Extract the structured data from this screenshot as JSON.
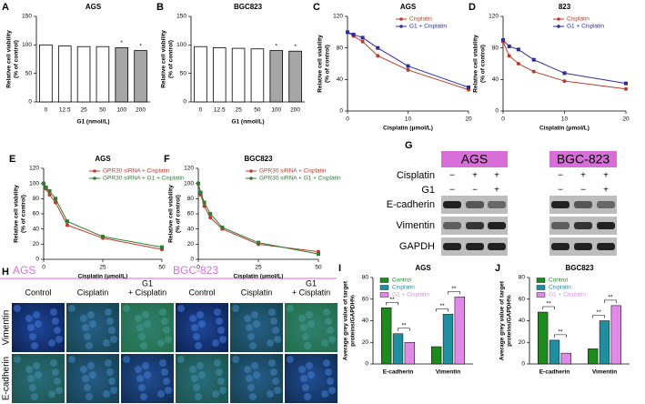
{
  "chart_data": [
    {
      "type": "bar",
      "panel": "A",
      "title": "AGS",
      "categories": [
        "0",
        "12.5",
        "25",
        "50",
        "100",
        "200"
      ],
      "values": [
        100,
        98,
        97,
        97,
        95,
        90
      ],
      "colors": [
        "#ffffff",
        "#ffffff",
        "#ffffff",
        "#ffffff",
        "#a6a6a6",
        "#a6a6a6"
      ],
      "ylim": [
        0,
        150
      ],
      "yticks": [
        0,
        50,
        100,
        150
      ],
      "ylabel": [
        "Relative cell viability",
        "(% of control)"
      ],
      "xlabel": "G1 (nmol/L)",
      "annotations": [
        {
          "text": "*",
          "category": "100"
        },
        {
          "text": "*",
          "category": "200"
        }
      ]
    },
    {
      "type": "bar",
      "panel": "B",
      "title": "BGC823",
      "categories": [
        "0",
        "12.5",
        "25",
        "50",
        "100",
        "200"
      ],
      "values": [
        97,
        95,
        94,
        93,
        90,
        89
      ],
      "colors": [
        "#ffffff",
        "#ffffff",
        "#ffffff",
        "#ffffff",
        "#a6a6a6",
        "#a6a6a6"
      ],
      "ylim": [
        0,
        150
      ],
      "yticks": [
        0,
        50,
        100,
        150
      ],
      "ylabel": [
        "Relative cell viability",
        "(% of control)"
      ],
      "xlabel": "G1 (nmol/L)",
      "annotations": [
        {
          "text": "*",
          "category": "100"
        },
        {
          "text": "*",
          "category": "200"
        }
      ]
    },
    {
      "type": "line",
      "panel": "C",
      "title": "AGS",
      "x": [
        0,
        1,
        2.5,
        5,
        10,
        20
      ],
      "xlim": [
        0,
        20
      ],
      "xticks": [
        0,
        10,
        20
      ],
      "ylim": [
        0,
        120
      ],
      "yticks": [
        0,
        40,
        80,
        120
      ],
      "ylabel": [
        "Relative cell viability",
        "(% of control)"
      ],
      "xlabel": "Cisplatin (μmol/L)",
      "legend": "upper right",
      "series": [
        {
          "name": "Cisplatin",
          "color": "#c0392b",
          "marker": "circle",
          "values": [
            100,
            95,
            88,
            70,
            52,
            27
          ]
        },
        {
          "name": "G1 + Cisplatin",
          "color": "#2c2c9c",
          "marker": "square",
          "values": [
            100,
            97,
            93,
            80,
            57,
            30
          ]
        }
      ]
    },
    {
      "type": "line",
      "panel": "D",
      "title": "823",
      "x": [
        0,
        1,
        2.5,
        5,
        10,
        20
      ],
      "xlim": [
        0,
        20
      ],
      "xticks": [
        0,
        10,
        20
      ],
      "ylim": [
        0,
        120
      ],
      "yticks": [
        0,
        40,
        80,
        120
      ],
      "ylabel": [
        "Relative cell viability",
        "(% of control)"
      ],
      "xlabel": "Cisplatin (μmol/L)",
      "legend": "upper right",
      "series": [
        {
          "name": "Cisplatin",
          "color": "#c0392b",
          "marker": "circle",
          "values": [
            88,
            70,
            60,
            50,
            38,
            28
          ]
        },
        {
          "name": "G1 + Cisplatin",
          "color": "#2c2c9c",
          "marker": "square",
          "values": [
            90,
            82,
            78,
            65,
            48,
            35
          ]
        }
      ]
    },
    {
      "type": "line",
      "panel": "E",
      "title": "AGS",
      "x": [
        0,
        1,
        2.5,
        5,
        10,
        25,
        50
      ],
      "xlim": [
        0,
        50
      ],
      "xticks": [
        0,
        25,
        50
      ],
      "ylim": [
        0,
        120
      ],
      "yticks": [
        0,
        20,
        40,
        60,
        80,
        100,
        120
      ],
      "ylabel": [
        "Relative cell viability",
        "(% of control)"
      ],
      "xlabel": "Cisplatin (μmol/L)",
      "legend": "upper right",
      "series": [
        {
          "name": "GPR30 siRNA + Cisplatin",
          "color": "#c0392b",
          "marker": "circle",
          "values": [
            100,
            93,
            85,
            75,
            45,
            28,
            13
          ]
        },
        {
          "name": "GPR30 siRNA + G1 + Cisplatin",
          "color": "#2e7d32",
          "marker": "square",
          "values": [
            100,
            95,
            90,
            80,
            50,
            30,
            16
          ]
        }
      ]
    },
    {
      "type": "line",
      "panel": "F",
      "title": "BGC823",
      "x": [
        0,
        1,
        2.5,
        5,
        10,
        25,
        50
      ],
      "xlim": [
        0,
        50
      ],
      "xticks": [
        0,
        25,
        50
      ],
      "ylim": [
        0,
        120
      ],
      "yticks": [
        0,
        20,
        40,
        60,
        80,
        100,
        120
      ],
      "ylabel": [
        "Relative cell viability",
        "(% of control)"
      ],
      "xlabel": "Cisplatin (μmol/L)",
      "legend": "upper right",
      "series": [
        {
          "name": "GPR30 siRNA + Cisplatin",
          "color": "#c0392b",
          "marker": "circle",
          "values": [
            100,
            85,
            70,
            55,
            40,
            20,
            10
          ]
        },
        {
          "name": "GPR30 siRNA + G1 + Cisplatin",
          "color": "#2e7d32",
          "marker": "square",
          "values": [
            100,
            88,
            75,
            60,
            42,
            22,
            7
          ]
        }
      ]
    },
    {
      "type": "bar",
      "panel": "I",
      "title": "AGS",
      "categories": [
        "E-cadherin",
        "Vimentin"
      ],
      "ylim": [
        0,
        80
      ],
      "yticks": [
        0,
        20,
        40,
        60,
        80
      ],
      "ylabel": [
        "Average grey value of target",
        "proteins/GAPDH%"
      ],
      "legend": "upper left",
      "series": [
        {
          "name": "Control",
          "color": "#1e8a1e",
          "values": [
            52,
            16
          ]
        },
        {
          "name": "Cisplatin",
          "color": "#1f8fa0",
          "values": [
            28,
            46
          ]
        },
        {
          "name": "G1 + Cisplatin",
          "color": "#e08ae8",
          "values": [
            20,
            62
          ]
        }
      ],
      "annotations": [
        {
          "text": "**",
          "category": "E-cadherin",
          "between": [
            "Control",
            "Cisplatin"
          ]
        },
        {
          "text": "**",
          "category": "E-cadherin",
          "between": [
            "Cisplatin",
            "G1 + Cisplatin"
          ]
        },
        {
          "text": "**",
          "category": "Vimentin",
          "between": [
            "Control",
            "Cisplatin"
          ]
        },
        {
          "text": "**",
          "category": "Vimentin",
          "between": [
            "Cisplatin",
            "G1 + Cisplatin"
          ]
        }
      ]
    },
    {
      "type": "bar",
      "panel": "J",
      "title": "BGC823",
      "categories": [
        "E-cadherin",
        "Vimentin"
      ],
      "ylim": [
        0,
        80
      ],
      "yticks": [
        0,
        20,
        40,
        60,
        80
      ],
      "ylabel": [
        "Average grey value of target",
        "proteins/GAPDH%"
      ],
      "legend": "upper left",
      "series": [
        {
          "name": "Control",
          "color": "#1e8a1e",
          "values": [
            48,
            14
          ]
        },
        {
          "name": "Cisplatin",
          "color": "#1f8fa0",
          "values": [
            22,
            40
          ]
        },
        {
          "name": "G1 + Cisplatin",
          "color": "#e08ae8",
          "values": [
            10,
            54
          ]
        }
      ],
      "annotations": [
        {
          "text": "**",
          "category": "E-cadherin",
          "between": [
            "Control",
            "Cisplatin"
          ]
        },
        {
          "text": "**",
          "category": "E-cadherin",
          "between": [
            "Cisplatin",
            "G1 + Cisplatin"
          ]
        },
        {
          "text": "**",
          "category": "Vimentin",
          "between": [
            "Control",
            "Cisplatin"
          ]
        },
        {
          "text": "**",
          "category": "Vimentin",
          "between": [
            "Cisplatin",
            "G1 + Cisplatin"
          ]
        }
      ]
    }
  ],
  "blot": {
    "panel": "G",
    "cell_lines": [
      "AGS",
      "BGC-823"
    ],
    "treatments": [
      {
        "label": "Cisplatin",
        "marks": [
          "−",
          "+",
          "+"
        ]
      },
      {
        "label": "G1",
        "marks": [
          "−",
          "−",
          "+"
        ]
      }
    ],
    "proteins": [
      "E-cadherin",
      "Vimentin",
      "GAPDH"
    ]
  },
  "micrographs": {
    "panel": "H",
    "cell_lines": [
      "AGS",
      "BGC-823"
    ],
    "columns": [
      [
        "Control"
      ],
      [
        "Cisplatin"
      ],
      [
        "G1",
        "+ Cisplatin"
      ]
    ],
    "rows": [
      "Vimentin",
      "E-cadherin"
    ]
  }
}
